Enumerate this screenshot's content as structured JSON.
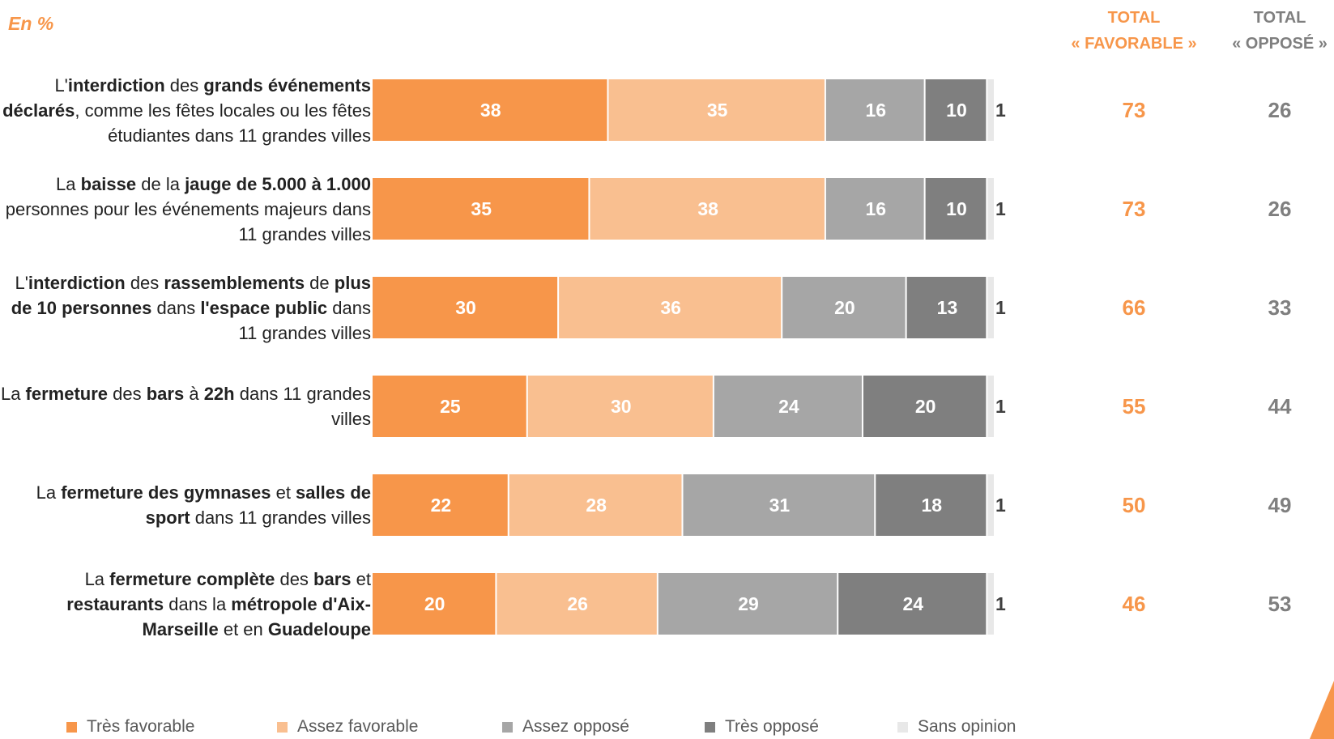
{
  "unit_label": "En %",
  "totals_header": {
    "favorable_line1": "TOTAL",
    "favorable_line2": "« FAVORABLE »",
    "oppose_line1": "TOTAL",
    "oppose_line2": "« OPPOSÉ »"
  },
  "colors": {
    "tres_favorable": "#f7964a",
    "assez_favorable": "#f9bf90",
    "assez_oppose": "#a6a6a6",
    "tres_oppose": "#7f7f7f",
    "sans_opinion": "#e8e8e8",
    "accent": "#f7964a"
  },
  "chart_data": {
    "type": "bar",
    "orientation": "horizontal",
    "stacked": true,
    "xlim": [
      0,
      100
    ],
    "grid": false,
    "legend_placement": "bottom",
    "categories": [
      {
        "segments": [
          {
            "text": "L'"
          },
          {
            "text": "interdiction",
            "bold": true
          },
          {
            "text": " des "
          },
          {
            "text": "grands événements déclarés",
            "bold": true
          },
          {
            "text": ", comme les fêtes locales ou les fêtes étudiantes dans 11 grandes villes"
          }
        ]
      },
      {
        "segments": [
          {
            "text": "La "
          },
          {
            "text": "baisse",
            "bold": true
          },
          {
            "text": " de la "
          },
          {
            "text": "jauge de 5.000 à 1.000",
            "bold": true
          },
          {
            "text": " personnes pour les événements majeurs dans 11 grandes villes"
          }
        ]
      },
      {
        "segments": [
          {
            "text": "L'"
          },
          {
            "text": "interdiction",
            "bold": true
          },
          {
            "text": " des "
          },
          {
            "text": "rassemblements",
            "bold": true
          },
          {
            "text": " de "
          },
          {
            "text": "plus de 10 personnes",
            "bold": true
          },
          {
            "text": " dans "
          },
          {
            "text": "l'espace public",
            "bold": true
          },
          {
            "text": " dans 11 grandes villes"
          }
        ]
      },
      {
        "segments": [
          {
            "text": "La "
          },
          {
            "text": "fermeture",
            "bold": true
          },
          {
            "text": " des "
          },
          {
            "text": "bars",
            "bold": true
          },
          {
            "text": " à "
          },
          {
            "text": "22h",
            "bold": true
          },
          {
            "text": " dans 11 grandes villes"
          }
        ]
      },
      {
        "segments": [
          {
            "text": "La "
          },
          {
            "text": "fermeture des gymnases",
            "bold": true
          },
          {
            "text": " et "
          },
          {
            "text": "salles de sport",
            "bold": true
          },
          {
            "text": " dans 11 grandes villes"
          }
        ]
      },
      {
        "segments": [
          {
            "text": "La "
          },
          {
            "text": "fermeture complète",
            "bold": true
          },
          {
            "text": " des "
          },
          {
            "text": "bars",
            "bold": true
          },
          {
            "text": " et "
          },
          {
            "text": "restaurants",
            "bold": true
          },
          {
            "text": " dans la "
          },
          {
            "text": "métropole d'Aix-Marseille",
            "bold": true
          },
          {
            "text": " et en "
          },
          {
            "text": "Guadeloupe",
            "bold": true
          }
        ]
      }
    ],
    "series": [
      {
        "name": "Très favorable",
        "color": "#f7964a",
        "values": [
          38,
          35,
          30,
          25,
          22,
          20
        ]
      },
      {
        "name": "Assez favorable",
        "color": "#f9bf90",
        "values": [
          35,
          38,
          36,
          30,
          28,
          26
        ]
      },
      {
        "name": "Assez opposé",
        "color": "#a6a6a6",
        "values": [
          16,
          16,
          20,
          24,
          31,
          29
        ]
      },
      {
        "name": "Très opposé",
        "color": "#7f7f7f",
        "values": [
          10,
          10,
          13,
          20,
          18,
          24
        ]
      },
      {
        "name": "Sans opinion",
        "color": "#e8e8e8",
        "values": [
          1,
          1,
          1,
          1,
          1,
          1
        ]
      }
    ],
    "totals_favorable": [
      73,
      73,
      66,
      55,
      50,
      46
    ],
    "totals_oppose": [
      26,
      26,
      33,
      44,
      49,
      53
    ]
  }
}
